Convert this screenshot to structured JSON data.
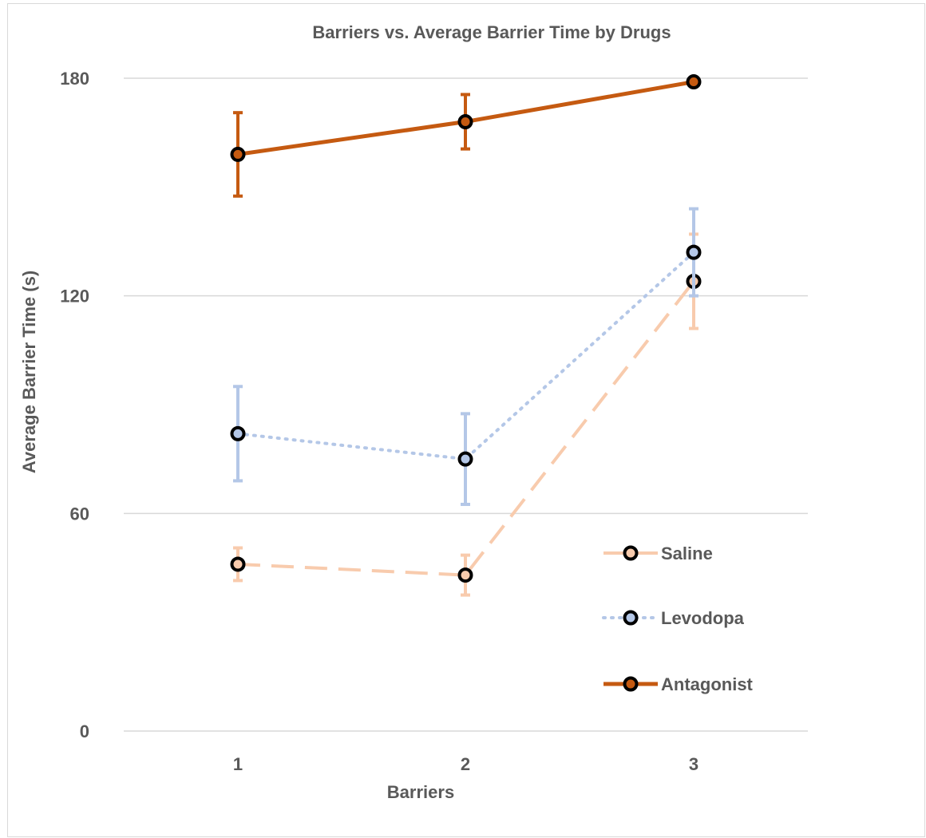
{
  "chart_data": {
    "type": "line",
    "title": "Barriers vs. Average Barrier Time by Drugs",
    "xlabel": "Barriers",
    "ylabel": "Average Barrier Time (s)",
    "categories": [
      "1",
      "2",
      "3"
    ],
    "ylim": [
      0,
      180
    ],
    "yticks": [
      "0",
      "60",
      "120",
      "180"
    ],
    "grid": true,
    "legend_position": "right",
    "series": [
      {
        "name": "Saline",
        "values": [
          46,
          43,
          124
        ],
        "error": [
          4.5,
          5.5,
          13
        ],
        "color": "#f8cbad",
        "line_style": "dashed"
      },
      {
        "name": "Levodopa",
        "values": [
          82,
          75,
          132
        ],
        "error": [
          13,
          12.5,
          12
        ],
        "color": "#b4c7e7",
        "line_style": "dotted"
      },
      {
        "name": "Antagonist",
        "values": [
          159,
          168,
          179
        ],
        "error": [
          11.5,
          7.5,
          0
        ],
        "color": "#c55a11",
        "line_style": "solid"
      }
    ],
    "marker_outline_color": "#000000",
    "gridline_color": "#d9d9d9"
  }
}
